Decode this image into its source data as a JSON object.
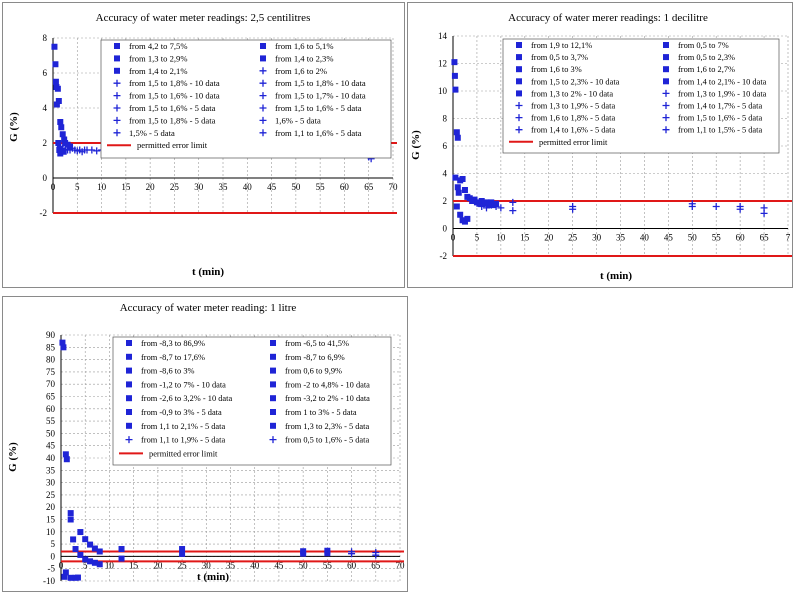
{
  "colors": {
    "marker": "#1f24d6",
    "limit": "#e01818",
    "grid": "#9a9a9a",
    "axis": "#000000"
  },
  "chart_data": [
    {
      "type": "scatter",
      "title": "Accuracy of water meter readings: 2,5 centilitres",
      "xlabel": "t (min)",
      "ylabel": "G (%)",
      "xlim": [
        0,
        70
      ],
      "ylim": [
        -2,
        8
      ],
      "xticks": [
        "0",
        "5",
        "10",
        "15",
        "20",
        "25",
        "30",
        "35",
        "40",
        "45",
        "50",
        "55",
        "60",
        "65",
        "70"
      ],
      "yticks": [
        "-2",
        "0",
        "2",
        "4",
        "6",
        "8"
      ],
      "grid": true,
      "legend_columns": 2,
      "legend": [
        {
          "label": "from 4,2 to 7,5%",
          "marker": "square"
        },
        {
          "label": "from 1,6 to 5,1%",
          "marker": "square"
        },
        {
          "label": "from 1,3 to 2,9%",
          "marker": "square"
        },
        {
          "label": "from 1,4 to 2,3%",
          "marker": "square"
        },
        {
          "label": "from 1,4 to 2,1%",
          "marker": "square"
        },
        {
          "label": "from 1,6 to 2%",
          "marker": "plus"
        },
        {
          "label": "from 1,5 to 1,8% - 10 data",
          "marker": "plus"
        },
        {
          "label": "from 1,5 to 1,8% - 10 data",
          "marker": "plus"
        },
        {
          "label": "from 1,5 to 1,6% - 10 data",
          "marker": "plus"
        },
        {
          "label": "from 1,5 to 1,7% - 10 data",
          "marker": "plus"
        },
        {
          "label": "from 1,5 to 1,6% - 5 data",
          "marker": "plus"
        },
        {
          "label": "from 1,5 to 1,6% - 5 data",
          "marker": "plus"
        },
        {
          "label": "from 1,5 to 1,8% - 5 data",
          "marker": "plus"
        },
        {
          "label": "1,6% - 5 data",
          "marker": "plus"
        },
        {
          "label": "1,5% - 5 data",
          "marker": "plus"
        },
        {
          "label": "from 1,1 to 1,6% - 5 data",
          "marker": "plus"
        }
      ],
      "limit_label": "permitted error limit",
      "limits": [
        2,
        -2
      ],
      "points": [
        {
          "m": "s",
          "pts": [
            [
              0.3,
              7.5
            ],
            [
              0.5,
              6.5
            ],
            [
              0.6,
              5.5
            ],
            [
              0.7,
              5.2
            ],
            [
              0.8,
              4.2
            ],
            [
              1,
              5.1
            ],
            [
              1.2,
              4.4
            ],
            [
              1.5,
              3.2
            ],
            [
              1.7,
              2.9
            ],
            [
              2,
              2.5
            ],
            [
              2.3,
              2.2
            ],
            [
              2.5,
              2.0
            ],
            [
              3,
              1.9
            ],
            [
              3.5,
              1.8
            ],
            [
              1.1,
              2.0
            ],
            [
              1.3,
              1.6
            ],
            [
              1.5,
              1.4
            ],
            [
              2.2,
              1.5
            ]
          ]
        },
        {
          "m": "p",
          "pts": [
            [
              1.5,
              1.8
            ],
            [
              2,
              1.7
            ],
            [
              2.5,
              1.65
            ],
            [
              3,
              1.6
            ],
            [
              3.5,
              1.6
            ],
            [
              4,
              1.7
            ],
            [
              4.5,
              1.6
            ],
            [
              5,
              1.55
            ],
            [
              5.5,
              1.6
            ],
            [
              6,
              1.5
            ],
            [
              6.5,
              1.6
            ],
            [
              7,
              1.6
            ],
            [
              8,
              1.6
            ],
            [
              9,
              1.55
            ],
            [
              10,
              1.6
            ],
            [
              12,
              1.5
            ],
            [
              12.5,
              1.6
            ],
            [
              25,
              1.5
            ],
            [
              50,
              1.8
            ],
            [
              50,
              1.6
            ],
            [
              55,
              1.6
            ],
            [
              60,
              1.5
            ],
            [
              65,
              1.6
            ],
            [
              65,
              1.2
            ],
            [
              65.5,
              1.1
            ]
          ]
        }
      ]
    },
    {
      "type": "scatter",
      "title": "Accuracy of water merer readings: 1 decilitre",
      "xlabel": "t (min)",
      "ylabel": "G (%)",
      "xlim": [
        0,
        70
      ],
      "ylim": [
        -2,
        14
      ],
      "xticks": [
        "0",
        "5",
        "10",
        "15",
        "20",
        "25",
        "30",
        "35",
        "40",
        "45",
        "50",
        "55",
        "60",
        "65",
        "7"
      ],
      "yticks": [
        "-2",
        "0",
        "2",
        "4",
        "6",
        "8",
        "10",
        "12",
        "14"
      ],
      "grid": true,
      "legend_columns": 2,
      "legend": [
        {
          "label": "from 1,9 to 12,1%",
          "marker": "square"
        },
        {
          "label": "from 0,5 to 7%",
          "marker": "square"
        },
        {
          "label": "from 0,5 to 3,7%",
          "marker": "square"
        },
        {
          "label": "from 0,5 to 2,3%",
          "marker": "square"
        },
        {
          "label": "from 1,6 to 3%",
          "marker": "square"
        },
        {
          "label": "from 1,6 to 2,7%",
          "marker": "square"
        },
        {
          "label": "from 1,5 to 2,3% - 10 data",
          "marker": "square"
        },
        {
          "label": "from 1,4 to 2,1% - 10 data",
          "marker": "square"
        },
        {
          "label": "from 1,3 to 2% - 10 data",
          "marker": "square"
        },
        {
          "label": "from 1,3 to 1,9% - 10 data",
          "marker": "plus"
        },
        {
          "label": "from 1,3 to 1,9% - 5 data",
          "marker": "plus"
        },
        {
          "label": "from 1,4 to 1,7% - 5 data",
          "marker": "plus"
        },
        {
          "label": "from 1,6 to 1,8% - 5 data",
          "marker": "plus"
        },
        {
          "label": "from 1,5 to 1,6% - 5 data",
          "marker": "plus"
        },
        {
          "label": "from 1,4 to 1,6% - 5 data",
          "marker": "plus"
        },
        {
          "label": "from 1,1 to 1,5% - 5 data",
          "marker": "plus"
        }
      ],
      "limit_label": "permitted error limit",
      "limits": [
        2,
        -2
      ],
      "points": [
        {
          "m": "s",
          "pts": [
            [
              0.3,
              12.1
            ],
            [
              0.4,
              11.1
            ],
            [
              0.5,
              10.1
            ],
            [
              0.8,
              7.0
            ],
            [
              1,
              6.6
            ],
            [
              0.5,
              3.7
            ],
            [
              1,
              3.0
            ],
            [
              1.5,
              3.5
            ],
            [
              2,
              3.6
            ],
            [
              1.2,
              2.6
            ],
            [
              2.5,
              2.8
            ],
            [
              3,
              2.3
            ],
            [
              3.5,
              2.2
            ],
            [
              4,
              2.0
            ],
            [
              4.5,
              2.1
            ],
            [
              5,
              1.9
            ],
            [
              5.5,
              1.8
            ],
            [
              6,
              2.0
            ],
            [
              6.5,
              1.8
            ],
            [
              7,
              1.9
            ],
            [
              7.5,
              1.7
            ],
            [
              8,
              1.9
            ],
            [
              8.5,
              1.7
            ],
            [
              9,
              1.8
            ],
            [
              1.5,
              1.0
            ],
            [
              2,
              0.6
            ],
            [
              2.5,
              0.5
            ],
            [
              3,
              0.7
            ],
            [
              0.8,
              1.6
            ]
          ]
        },
        {
          "m": "p",
          "pts": [
            [
              6,
              1.6
            ],
            [
              7,
              1.5
            ],
            [
              8,
              1.7
            ],
            [
              9,
              1.6
            ],
            [
              10,
              1.5
            ],
            [
              12.5,
              1.9
            ],
            [
              12.5,
              1.3
            ],
            [
              25,
              1.6
            ],
            [
              25,
              1.4
            ],
            [
              50,
              1.8
            ],
            [
              50,
              1.6
            ],
            [
              55,
              1.6
            ],
            [
              60,
              1.6
            ],
            [
              60,
              1.4
            ],
            [
              65,
              1.5
            ],
            [
              65,
              1.1
            ]
          ]
        }
      ]
    },
    {
      "type": "scatter",
      "title": "Accuracy of water meter reading: 1 litre",
      "xlabel": "t (min)",
      "ylabel": "G (%)",
      "xlim": [
        0,
        70
      ],
      "ylim": [
        -10,
        90
      ],
      "xticks": [
        "0",
        "5",
        "10",
        "15",
        "20",
        "25",
        "30",
        "35",
        "40",
        "45",
        "50",
        "55",
        "60",
        "65",
        "70"
      ],
      "yticks": [
        "-10",
        "-5",
        "0",
        "5",
        "10",
        "15",
        "20",
        "25",
        "30",
        "35",
        "40",
        "45",
        "50",
        "55",
        "60",
        "65",
        "70",
        "75",
        "80",
        "85",
        "90"
      ],
      "grid": true,
      "legend_columns": 2,
      "legend": [
        {
          "label": "from -8,3 to 86,9%",
          "marker": "square"
        },
        {
          "label": "from -6,5 to 41,5%",
          "marker": "square"
        },
        {
          "label": "from -8,7 to 17,6%",
          "marker": "square"
        },
        {
          "label": "from -8,7 to 6,9%",
          "marker": "square"
        },
        {
          "label": "from -8,6 to 3%",
          "marker": "square"
        },
        {
          "label": "from 0,6 to 9,9%",
          "marker": "square"
        },
        {
          "label": "from -1,2 to 7% - 10 data",
          "marker": "square"
        },
        {
          "label": "from -2 to 4,8% - 10 data",
          "marker": "square"
        },
        {
          "label": "from -2,6 to 3,2% - 10 data",
          "marker": "square"
        },
        {
          "label": "from -3,2 to 2% - 10 data",
          "marker": "square"
        },
        {
          "label": "from -0,9 to 3% - 5 data",
          "marker": "square"
        },
        {
          "label": "from 1 to 3% - 5 data",
          "marker": "square"
        },
        {
          "label": "from 1,1 to 2,1% - 5 data",
          "marker": "square"
        },
        {
          "label": "from 1,3 to 2,3% - 5 data",
          "marker": "square"
        },
        {
          "label": "from 1,1 to 1,9% - 5 data",
          "marker": "plus"
        },
        {
          "label": "from 0,5 to 1,6% - 5 data",
          "marker": "plus"
        }
      ],
      "limit_label": "permitted error limit",
      "limits": [
        2,
        -2
      ],
      "points": [
        {
          "m": "s",
          "pts": [
            [
              0.3,
              86.9
            ],
            [
              0.5,
              85
            ],
            [
              0.7,
              -8.3
            ],
            [
              1,
              41.5
            ],
            [
              1.2,
              39.5
            ],
            [
              1,
              -6.5
            ],
            [
              2,
              17.6
            ],
            [
              2,
              15
            ],
            [
              2,
              -8.7
            ],
            [
              2.5,
              6.9
            ],
            [
              3,
              -8.7
            ],
            [
              3,
              3
            ],
            [
              3.5,
              -8.6
            ],
            [
              4,
              9.9
            ],
            [
              4,
              0.6
            ],
            [
              5,
              7
            ],
            [
              5,
              -1.2
            ],
            [
              6,
              4.8
            ],
            [
              6,
              -2
            ],
            [
              7,
              3.2
            ],
            [
              7,
              -2.6
            ],
            [
              8,
              2
            ],
            [
              8,
              -3.2
            ],
            [
              12.5,
              3
            ],
            [
              12.5,
              -0.9
            ],
            [
              25,
              3
            ],
            [
              25,
              1
            ],
            [
              50,
              2.1
            ],
            [
              50,
              1.1
            ],
            [
              55,
              2.3
            ],
            [
              55,
              1.3
            ]
          ]
        },
        {
          "m": "p",
          "pts": [
            [
              60,
              1.9
            ],
            [
              60,
              1.1
            ],
            [
              65,
              1.6
            ],
            [
              65,
              0.5
            ]
          ]
        }
      ]
    }
  ]
}
